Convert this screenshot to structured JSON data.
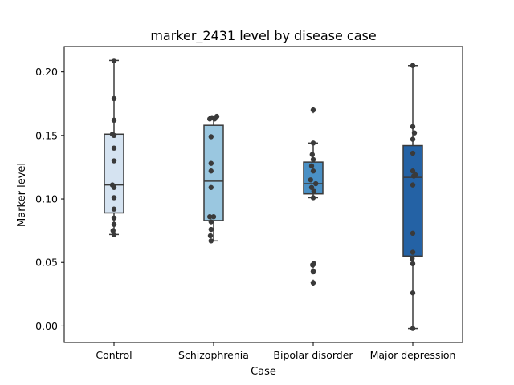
{
  "chart_data": {
    "type": "box",
    "title": "marker_2431 level by disease case",
    "xlabel": "Case",
    "ylabel": "Marker level",
    "ylim": [
      -0.013,
      0.22
    ],
    "yticks": [
      "0.00",
      "0.05",
      "0.10",
      "0.15",
      "0.20"
    ],
    "categories": [
      "Control",
      "Schizophrenia",
      "Bipolar disorder",
      "Major depression"
    ],
    "box_colors": [
      "#d5e3f1",
      "#9ac7e0",
      "#4a90c5",
      "#2462a5"
    ],
    "edge_color": "#3a3a3a",
    "point_color": "#3a3a3a",
    "grid": false,
    "legend": "none",
    "boxes": [
      {
        "name": "Control",
        "whisker_low": 0.072,
        "q1": 0.089,
        "median": 0.111,
        "q3": 0.151,
        "whisker_high": 0.209,
        "fliers": []
      },
      {
        "name": "Schizophrenia",
        "whisker_low": 0.067,
        "q1": 0.083,
        "median": 0.114,
        "q3": 0.158,
        "whisker_high": 0.165,
        "fliers": []
      },
      {
        "name": "Bipolar disorder",
        "whisker_low": 0.101,
        "q1": 0.104,
        "median": 0.112,
        "q3": 0.129,
        "whisker_high": 0.144,
        "fliers": [
          0.17,
          0.048,
          0.043,
          0.034
        ]
      },
      {
        "name": "Major depression",
        "whisker_low": -0.002,
        "q1": 0.055,
        "median": 0.117,
        "q3": 0.142,
        "whisker_high": 0.205,
        "fliers": []
      }
    ],
    "points": [
      [
        [
          0.0,
          0.209
        ],
        [
          0.0,
          0.179
        ],
        [
          0.0,
          0.162
        ],
        [
          -0.05,
          0.151
        ],
        [
          0.0,
          0.15
        ],
        [
          0.0,
          0.14
        ],
        [
          0.0,
          0.13
        ],
        [
          -0.05,
          0.111
        ],
        [
          0.0,
          0.109
        ],
        [
          0.0,
          0.101
        ],
        [
          0.0,
          0.092
        ],
        [
          0.0,
          0.085
        ],
        [
          0.0,
          0.08
        ],
        [
          -0.03,
          0.075
        ],
        [
          0.0,
          0.072
        ]
      ],
      [
        [
          -0.12,
          0.163
        ],
        [
          -0.05,
          0.164
        ],
        [
          0.03,
          0.163
        ],
        [
          0.1,
          0.165
        ],
        [
          -0.08,
          0.149
        ],
        [
          -0.08,
          0.128
        ],
        [
          -0.08,
          0.122
        ],
        [
          -0.08,
          0.109
        ],
        [
          -0.12,
          0.086
        ],
        [
          0.0,
          0.086
        ],
        [
          -0.08,
          0.082
        ],
        [
          -0.08,
          0.076
        ],
        [
          -0.1,
          0.071
        ],
        [
          -0.08,
          0.067
        ]
      ],
      [
        [
          0.0,
          0.17
        ],
        [
          0.0,
          0.144
        ],
        [
          -0.03,
          0.135
        ],
        [
          0.0,
          0.131
        ],
        [
          -0.05,
          0.126
        ],
        [
          0.0,
          0.122
        ],
        [
          -0.08,
          0.115
        ],
        [
          0.08,
          0.112
        ],
        [
          -0.05,
          0.109
        ],
        [
          0.02,
          0.106
        ],
        [
          0.0,
          0.101
        ],
        [
          -0.02,
          0.048
        ],
        [
          0.02,
          0.049
        ],
        [
          0.0,
          0.043
        ],
        [
          0.0,
          0.034
        ]
      ],
      [
        [
          0.0,
          0.205
        ],
        [
          0.0,
          0.157
        ],
        [
          0.05,
          0.152
        ],
        [
          0.0,
          0.147
        ],
        [
          0.0,
          0.136
        ],
        [
          0.0,
          0.122
        ],
        [
          0.08,
          0.119
        ],
        [
          0.03,
          0.118
        ],
        [
          0.0,
          0.111
        ],
        [
          0.0,
          0.073
        ],
        [
          0.0,
          0.058
        ],
        [
          -0.02,
          0.053
        ],
        [
          0.0,
          0.049
        ],
        [
          0.0,
          0.026
        ],
        [
          0.0,
          -0.002
        ]
      ]
    ]
  }
}
